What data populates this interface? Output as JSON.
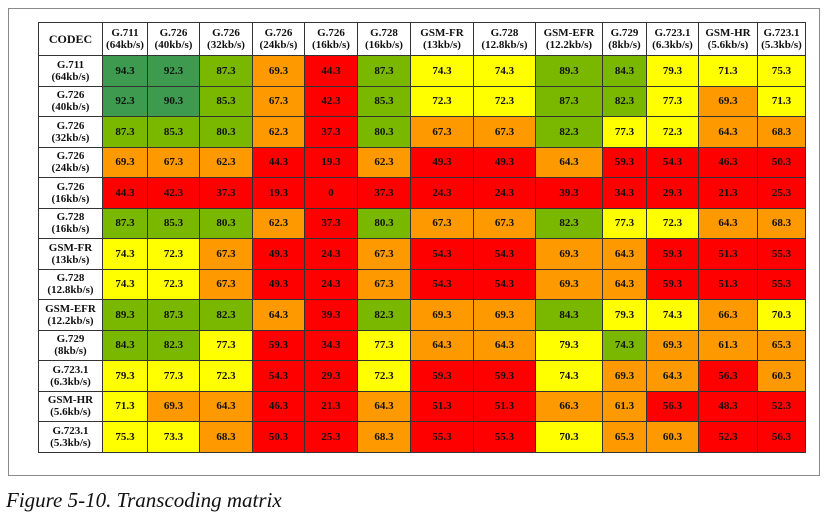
{
  "caption": "Figure 5-10. Transcoding matrix",
  "colors": {
    "dark_green": "#3d9a4e",
    "green": "#7ab800",
    "yellow": "#ffff00",
    "orange": "#ff9900",
    "red": "#ff0000"
  },
  "chart_data": {
    "type": "heatmap",
    "corner_label": "CODEC",
    "columns": [
      {
        "name": "G.711",
        "rate": "(64kb/s)"
      },
      {
        "name": "G.726",
        "rate": "(40kb/s)"
      },
      {
        "name": "G.726",
        "rate": "(32kb/s)"
      },
      {
        "name": "G.726",
        "rate": "(24kb/s)"
      },
      {
        "name": "G.726",
        "rate": "(16kb/s)"
      },
      {
        "name": "G.728",
        "rate": "(16kb/s)"
      },
      {
        "name": "GSM-FR",
        "rate": "(13kb/s)"
      },
      {
        "name": "G.728",
        "rate": "(12.8kb/s)"
      },
      {
        "name": "GSM-EFR",
        "rate": "(12.2kb/s)"
      },
      {
        "name": "G.729",
        "rate": "(8kb/s)"
      },
      {
        "name": "G.723.1",
        "rate": "(6.3kb/s)"
      },
      {
        "name": "GSM-HR",
        "rate": "(5.6kb/s)"
      },
      {
        "name": "G.723.1",
        "rate": "(5.3kb/s)"
      }
    ],
    "rows": [
      {
        "name": "G.711",
        "rate": "(64kb/s)",
        "values": [
          "94.3",
          "92.3",
          "87.3",
          "69.3",
          "44.3",
          "87.3",
          "74.3",
          "74.3",
          "89.3",
          "84.3",
          "79.3",
          "71.3",
          "75.3"
        ],
        "colors": [
          "dg",
          "dg",
          "g",
          "o",
          "r",
          "g",
          "y",
          "y",
          "g",
          "g",
          "y",
          "y",
          "y"
        ]
      },
      {
        "name": "G.726",
        "rate": "(40kb/s)",
        "values": [
          "92.3",
          "90.3",
          "85.3",
          "67.3",
          "42.3",
          "85.3",
          "72.3",
          "72.3",
          "87.3",
          "82.3",
          "77.3",
          "69.3",
          "71.3"
        ],
        "colors": [
          "dg",
          "dg",
          "g",
          "o",
          "r",
          "g",
          "y",
          "y",
          "g",
          "g",
          "y",
          "o",
          "y"
        ]
      },
      {
        "name": "G.726",
        "rate": "(32kb/s)",
        "values": [
          "87.3",
          "85.3",
          "80.3",
          "62.3",
          "37.3",
          "80.3",
          "67.3",
          "67.3",
          "82.3",
          "77.3",
          "72.3",
          "64.3",
          "68.3"
        ],
        "colors": [
          "g",
          "g",
          "g",
          "o",
          "r",
          "g",
          "o",
          "o",
          "g",
          "y",
          "y",
          "o",
          "o"
        ]
      },
      {
        "name": "G.726",
        "rate": "(24kb/s)",
        "values": [
          "69.3",
          "67.3",
          "62.3",
          "44.3",
          "19.3",
          "62.3",
          "49.3",
          "49.3",
          "64.3",
          "59.3",
          "54.3",
          "46.3",
          "50.3"
        ],
        "colors": [
          "o",
          "o",
          "o",
          "r",
          "r",
          "o",
          "r",
          "r",
          "o",
          "r",
          "r",
          "r",
          "r"
        ]
      },
      {
        "name": "G.726",
        "rate": "(16kb/s)",
        "values": [
          "44.3",
          "42.3",
          "37.3",
          "19.3",
          "0",
          "37.3",
          "24.3",
          "24.3",
          "39.3",
          "34.3",
          "29.3",
          "21.3",
          "25.3"
        ],
        "colors": [
          "r",
          "r",
          "r",
          "r",
          "r",
          "r",
          "r",
          "r",
          "r",
          "r",
          "r",
          "r",
          "r"
        ]
      },
      {
        "name": "G.728",
        "rate": "(16kb/s)",
        "values": [
          "87.3",
          "85.3",
          "80.3",
          "62.3",
          "37.3",
          "80.3",
          "67.3",
          "67.3",
          "82.3",
          "77.3",
          "72.3",
          "64.3",
          "68.3"
        ],
        "colors": [
          "g",
          "g",
          "g",
          "o",
          "r",
          "g",
          "o",
          "o",
          "g",
          "y",
          "y",
          "o",
          "o"
        ]
      },
      {
        "name": "GSM-FR",
        "rate": "(13kb/s)",
        "values": [
          "74.3",
          "72.3",
          "67.3",
          "49.3",
          "24.3",
          "67.3",
          "54.3",
          "54.3",
          "69.3",
          "64.3",
          "59.3",
          "51.3",
          "55.3"
        ],
        "colors": [
          "y",
          "y",
          "o",
          "r",
          "r",
          "o",
          "r",
          "r",
          "o",
          "o",
          "r",
          "r",
          "r"
        ]
      },
      {
        "name": "G.728",
        "rate": "(12.8kb/s)",
        "values": [
          "74.3",
          "72.3",
          "67.3",
          "49.3",
          "24.3",
          "67.3",
          "54.3",
          "54.3",
          "69.3",
          "64.3",
          "59.3",
          "51.3",
          "55.3"
        ],
        "colors": [
          "y",
          "y",
          "o",
          "r",
          "r",
          "o",
          "r",
          "r",
          "o",
          "o",
          "r",
          "r",
          "r"
        ]
      },
      {
        "name": "GSM-EFR",
        "rate": "(12.2kb/s)",
        "values": [
          "89.3",
          "87.3",
          "82.3",
          "64.3",
          "39.3",
          "82.3",
          "69.3",
          "69.3",
          "84.3",
          "79.3",
          "74.3",
          "66.3",
          "70.3"
        ],
        "colors": [
          "g",
          "g",
          "g",
          "o",
          "r",
          "g",
          "o",
          "o",
          "g",
          "y",
          "y",
          "o",
          "y"
        ]
      },
      {
        "name": "G.729",
        "rate": "(8kb/s)",
        "values": [
          "84.3",
          "82.3",
          "77.3",
          "59.3",
          "34.3",
          "77.3",
          "64.3",
          "64.3",
          "79.3",
          "74.3",
          "69.3",
          "61.3",
          "65.3"
        ],
        "colors": [
          "g",
          "g",
          "y",
          "r",
          "r",
          "y",
          "o",
          "o",
          "y",
          "g",
          "o",
          "o",
          "o"
        ]
      },
      {
        "name": "G.723.1",
        "rate": "(6.3kb/s)",
        "values": [
          "79.3",
          "77.3",
          "72.3",
          "54.3",
          "29.3",
          "72.3",
          "59.3",
          "59.3",
          "74.3",
          "69.3",
          "64.3",
          "56.3",
          "60.3"
        ],
        "colors": [
          "y",
          "y",
          "y",
          "r",
          "r",
          "y",
          "r",
          "r",
          "y",
          "o",
          "o",
          "r",
          "o"
        ]
      },
      {
        "name": "GSM-HR",
        "rate": "(5.6kb/s)",
        "values": [
          "71.3",
          "69.3",
          "64.3",
          "46.3",
          "21.3",
          "64.3",
          "51.3",
          "51.3",
          "66.3",
          "61.3",
          "56.3",
          "48.3",
          "52.3"
        ],
        "colors": [
          "y",
          "o",
          "o",
          "r",
          "r",
          "o",
          "r",
          "r",
          "o",
          "o",
          "r",
          "r",
          "r"
        ]
      },
      {
        "name": "G.723.1",
        "rate": "(5.3kb/s)",
        "values": [
          "75.3",
          "73.3",
          "68.3",
          "50.3",
          "25.3",
          "68.3",
          "55.3",
          "55.3",
          "70.3",
          "65.3",
          "60.3",
          "52.3",
          "56.3"
        ],
        "colors": [
          "y",
          "y",
          "o",
          "r",
          "r",
          "o",
          "r",
          "r",
          "y",
          "o",
          "o",
          "r",
          "r"
        ]
      }
    ]
  }
}
